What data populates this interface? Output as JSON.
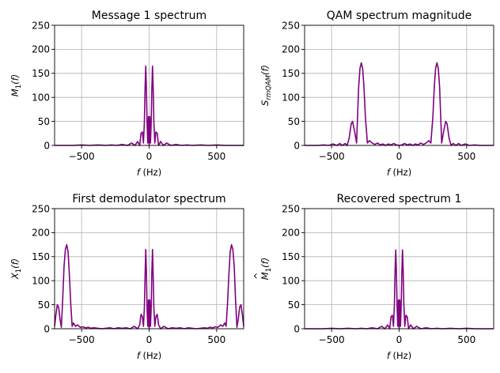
{
  "chart_data": [
    {
      "type": "line",
      "title": "Message 1 spectrum",
      "xlabel": "f (Hz)",
      "ylabel": "M_1(f)",
      "xlim": [
        -700,
        700
      ],
      "ylim": [
        0,
        250
      ],
      "xticks": [
        -500,
        0,
        500
      ],
      "yticks": [
        0,
        50,
        100,
        150,
        200,
        250
      ],
      "grid": true,
      "color": "#800080",
      "series": [
        {
          "x": [
            -700,
            -560,
            -500,
            -440,
            -380,
            -320,
            -280,
            -240,
            -200,
            -160,
            -130,
            -105,
            -85,
            -70,
            -60,
            -50,
            -42,
            -35,
            -30,
            -25,
            -20,
            -15,
            -10,
            -5,
            0,
            5,
            10,
            15,
            20,
            25,
            30,
            35,
            42,
            50,
            60,
            70,
            85,
            105,
            130,
            160,
            200,
            240,
            280,
            320,
            380,
            440,
            500,
            560,
            700
          ],
          "y": [
            0,
            0,
            1,
            0,
            1,
            0,
            1,
            0,
            2,
            0,
            5,
            0,
            8,
            0,
            25,
            28,
            5,
            50,
            120,
            165,
            115,
            45,
            5,
            60,
            0,
            60,
            5,
            45,
            115,
            165,
            120,
            50,
            5,
            28,
            25,
            0,
            8,
            0,
            5,
            0,
            2,
            0,
            1,
            0,
            1,
            0,
            1,
            0,
            0
          ]
        }
      ]
    },
    {
      "type": "line",
      "title": "QAM spectrum magnitude",
      "xlabel": "f (Hz)",
      "ylabel": "S_rmQAM(f)",
      "xlim": [
        -700,
        700
      ],
      "ylim": [
        0,
        250
      ],
      "xticks": [
        -500,
        0,
        500
      ],
      "yticks": [
        0,
        50,
        100,
        150,
        200,
        250
      ],
      "grid": true,
      "color": "#800080",
      "series": [
        {
          "x": [
            -700,
            -600,
            -560,
            -520,
            -490,
            -460,
            -440,
            -420,
            -400,
            -385,
            -370,
            -355,
            -345,
            -330,
            -315,
            -300,
            -290,
            -280,
            -270,
            -260,
            -250,
            -235,
            -220,
            -200,
            -180,
            -160,
            -140,
            -120,
            -100,
            -80,
            -60,
            -40,
            -20,
            0,
            20,
            40,
            60,
            80,
            100,
            120,
            140,
            160,
            180,
            200,
            220,
            235,
            250,
            260,
            270,
            280,
            290,
            300,
            315,
            330,
            345,
            355,
            370,
            385,
            400,
            420,
            440,
            460,
            490,
            520,
            560,
            600,
            700
          ],
          "y": [
            0,
            0,
            1,
            0,
            3,
            0,
            4,
            0,
            4,
            0,
            15,
            45,
            50,
            30,
            5,
            120,
            160,
            172,
            160,
            120,
            60,
            5,
            10,
            5,
            2,
            5,
            1,
            3,
            0,
            3,
            1,
            4,
            1,
            0,
            1,
            4,
            1,
            3,
            0,
            3,
            1,
            5,
            2,
            5,
            10,
            5,
            60,
            120,
            160,
            172,
            160,
            120,
            5,
            30,
            50,
            45,
            15,
            0,
            4,
            0,
            4,
            0,
            3,
            0,
            1,
            0,
            0
          ]
        }
      ]
    },
    {
      "type": "line",
      "title": "First demodulator spectrum",
      "xlabel": "f (Hz)",
      "ylabel": "X_1(f)",
      "xlim": [
        -700,
        700
      ],
      "ylim": [
        0,
        250
      ],
      "xticks": [
        -500,
        0,
        500
      ],
      "yticks": [
        0,
        50,
        100,
        150,
        200,
        250
      ],
      "grid": true,
      "color": "#800080",
      "series": [
        {
          "x": [
            -700,
            -690,
            -680,
            -670,
            -660,
            -650,
            -640,
            -630,
            -620,
            -610,
            -600,
            -590,
            -580,
            -570,
            -560,
            -545,
            -530,
            -510,
            -490,
            -470,
            -450,
            -430,
            -410,
            -380,
            -350,
            -320,
            -290,
            -260,
            -230,
            -200,
            -170,
            -140,
            -110,
            -85,
            -70,
            -60,
            -50,
            -42,
            -35,
            -30,
            -25,
            -20,
            -15,
            -10,
            -5,
            0,
            5,
            10,
            15,
            20,
            25,
            30,
            35,
            42,
            50,
            60,
            70,
            85,
            110,
            140,
            170,
            200,
            230,
            260,
            290,
            320,
            350,
            380,
            410,
            430,
            450,
            470,
            490,
            510,
            530,
            545,
            560,
            570,
            580,
            590,
            600,
            610,
            620,
            630,
            640,
            650,
            660,
            670,
            680,
            690,
            700
          ],
          "y": [
            5,
            30,
            50,
            45,
            20,
            3,
            60,
            130,
            165,
            175,
            160,
            110,
            50,
            5,
            12,
            5,
            8,
            3,
            4,
            2,
            3,
            1,
            2,
            1,
            0,
            1,
            2,
            0,
            2,
            1,
            2,
            0,
            5,
            0,
            8,
            30,
            25,
            5,
            45,
            110,
            165,
            115,
            40,
            5,
            60,
            0,
            60,
            5,
            40,
            115,
            165,
            110,
            45,
            5,
            25,
            30,
            8,
            0,
            5,
            0,
            2,
            1,
            2,
            0,
            2,
            1,
            0,
            1,
            2,
            1,
            3,
            2,
            4,
            3,
            8,
            5,
            12,
            5,
            50,
            110,
            160,
            175,
            165,
            130,
            60,
            3,
            20,
            45,
            50,
            30,
            5
          ]
        }
      ]
    },
    {
      "type": "line",
      "title": "Recovered spectrum 1",
      "xlabel": "f (Hz)",
      "ylabel": "M̂_1(f)",
      "xlim": [
        -700,
        700
      ],
      "ylim": [
        0,
        250
      ],
      "xticks": [
        -500,
        0,
        500
      ],
      "yticks": [
        0,
        50,
        100,
        150,
        200,
        250
      ],
      "grid": true,
      "color": "#800080",
      "series": [
        {
          "x": [
            -700,
            -560,
            -500,
            -440,
            -380,
            -320,
            -280,
            -240,
            -200,
            -160,
            -130,
            -105,
            -85,
            -70,
            -60,
            -50,
            -42,
            -35,
            -30,
            -25,
            -20,
            -15,
            -10,
            -5,
            0,
            5,
            10,
            15,
            20,
            25,
            30,
            35,
            42,
            50,
            60,
            70,
            85,
            105,
            130,
            160,
            200,
            240,
            280,
            320,
            380,
            440,
            500,
            560,
            700
          ],
          "y": [
            0,
            0,
            1,
            0,
            1,
            0,
            1,
            0,
            2,
            0,
            5,
            0,
            8,
            0,
            25,
            28,
            5,
            50,
            120,
            164,
            115,
            45,
            5,
            60,
            0,
            60,
            5,
            45,
            115,
            164,
            120,
            50,
            5,
            28,
            25,
            0,
            8,
            0,
            5,
            0,
            2,
            0,
            1,
            0,
            1,
            0,
            1,
            0,
            0
          ]
        }
      ]
    }
  ],
  "labels": {
    "titles": [
      "Message 1 spectrum",
      "QAM spectrum magnitude",
      "First demodulator spectrum",
      "Recovered spectrum 1"
    ],
    "xlabel_var": "f",
    "xlabel_unit": " (Hz)",
    "ylabels": [
      {
        "base": "M",
        "sub": "1",
        "hat": false
      },
      {
        "base": "S",
        "sub": "rmQAM",
        "hat": false
      },
      {
        "base": "X",
        "sub": "1",
        "hat": false
      },
      {
        "base": "M",
        "sub": "1",
        "hat": true
      }
    ],
    "ylabel_arg": "(f)",
    "xtick_labels": [
      "−500",
      "0",
      "500"
    ],
    "ytick_labels": [
      "0",
      "50",
      "100",
      "150",
      "200",
      "250"
    ]
  }
}
